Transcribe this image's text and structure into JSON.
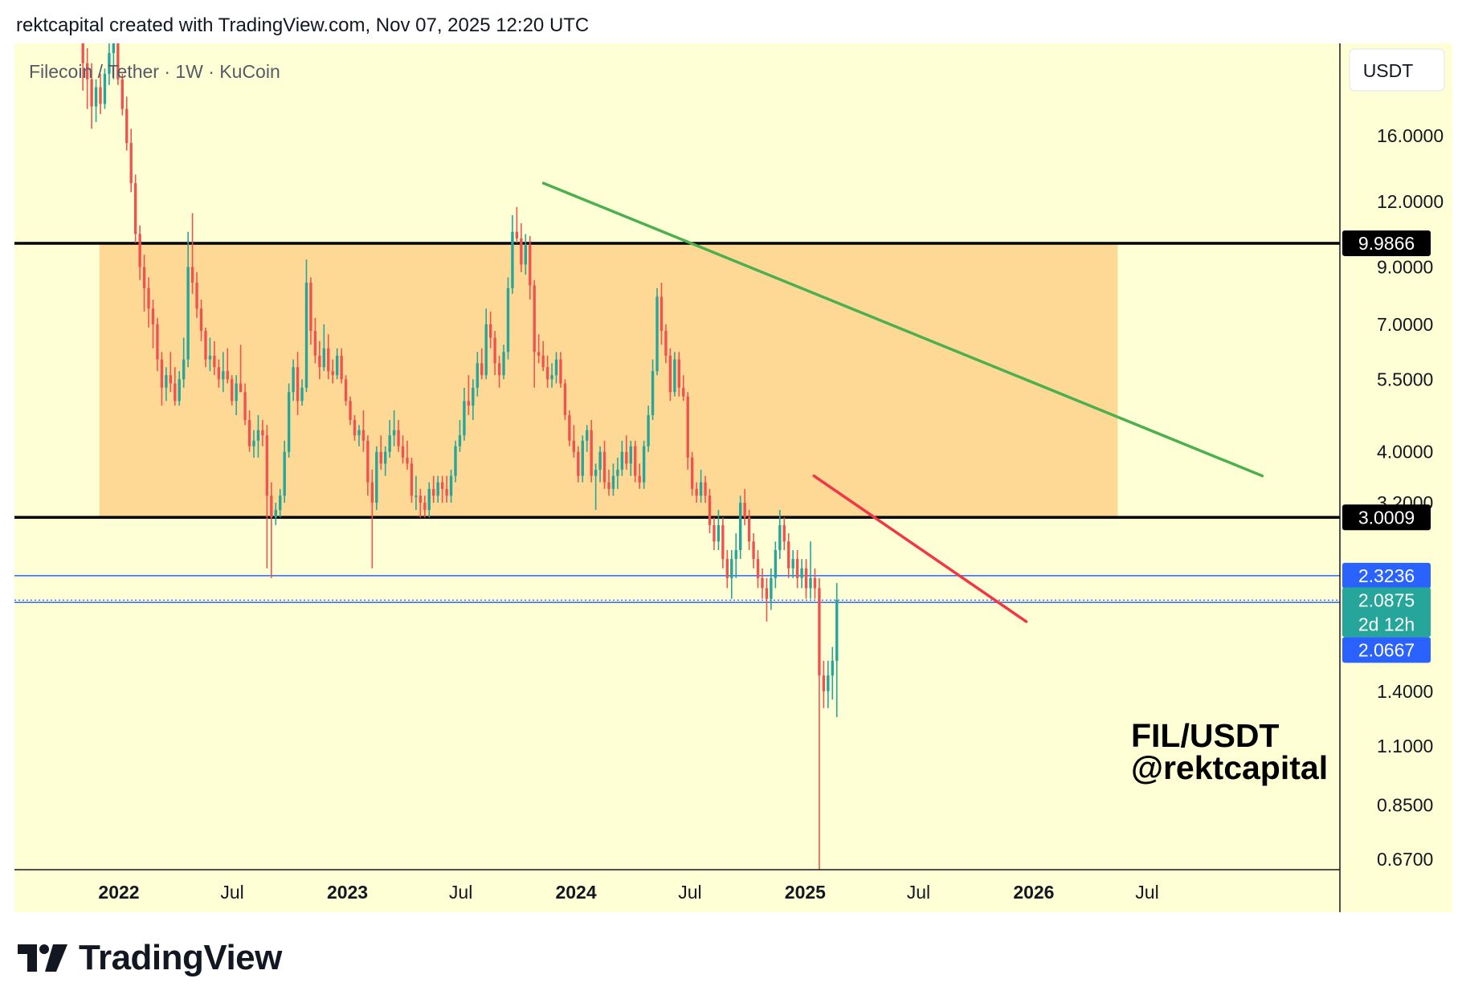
{
  "header": "rektcapital created with TradingView.com, Nov 07, 2025 12:20 UTC",
  "symbol_title": "Filecoin / Tether · 1W · KuCoin",
  "currency": "USDT",
  "footer_brand": "TradingView",
  "annotation": {
    "line1": "FIL/USDT",
    "line2": "@rektcapital"
  },
  "colors": {
    "chart_background": "#ffffd5",
    "zone": "#fed996",
    "up": "#26a69a",
    "down": "#ef5350",
    "green_trendline": "#4caf50",
    "red_trendline": "#f23645",
    "black_level": "#000000",
    "blue_level": "#2962ff",
    "current_price_label": "#26a69a"
  },
  "chart_data": {
    "type": "candlestick",
    "title": "Filecoin / Tether · 1W · KuCoin",
    "x_axis": {
      "ticks": [
        {
          "label": "2022",
          "date": "2022-01-01",
          "bold": true
        },
        {
          "label": "Jul",
          "date": "2022-07-01",
          "bold": false
        },
        {
          "label": "2023",
          "date": "2023-01-01",
          "bold": true
        },
        {
          "label": "Jul",
          "date": "2023-07-01",
          "bold": false
        },
        {
          "label": "2024",
          "date": "2024-01-01",
          "bold": true
        },
        {
          "label": "Jul",
          "date": "2024-07-01",
          "bold": false
        },
        {
          "label": "2025",
          "date": "2025-01-01",
          "bold": true
        },
        {
          "label": "Jul",
          "date": "2025-07-01",
          "bold": false
        },
        {
          "label": "2026",
          "date": "2026-01-01",
          "bold": true
        },
        {
          "label": "Jul",
          "date": "2026-07-01",
          "bold": false
        }
      ]
    },
    "y_axis": {
      "scale": "log",
      "range": [
        0.64,
        24.0
      ],
      "ticks": [
        "16.0000",
        "12.0000",
        "9.0000",
        "7.0000",
        "5.5000",
        "4.0000",
        "3.2000",
        "1.4000",
        "1.1000",
        "0.8500",
        "0.6700"
      ]
    },
    "levels": [
      {
        "value": 9.9866,
        "label": "9.9866",
        "kind": "black-resistance"
      },
      {
        "value": 3.0009,
        "label": "3.0009",
        "kind": "black-support"
      },
      {
        "value": 2.3236,
        "label": "2.3236",
        "kind": "blue-line"
      },
      {
        "value": 2.0667,
        "label": "2.0667",
        "kind": "blue-line"
      }
    ],
    "current_price": {
      "value": 2.0875,
      "label": "2.0875",
      "countdown": "2d 12h"
    },
    "zone": {
      "from_date": "2021-12-01",
      "to_date": "2026-05-15",
      "low": 3.0009,
      "high": 9.9866
    },
    "trendlines": [
      {
        "name": "green",
        "from": [
          "2023-11-10",
          13.0
        ],
        "to": [
          "2027-01-01",
          3.6
        ]
      },
      {
        "name": "red",
        "from": [
          "2025-01-15",
          3.6
        ],
        "to": [
          "2025-12-20",
          1.9
        ]
      }
    ],
    "candles_weekly_from": "2021-11-01",
    "candles": [
      [
        24.0,
        26.0,
        19.5,
        22.0
      ],
      [
        22.0,
        23.5,
        18.0,
        20.5
      ],
      [
        20.5,
        22.0,
        16.5,
        18.2
      ],
      [
        18.2,
        20.5,
        17.0,
        19.8
      ],
      [
        19.8,
        21.0,
        17.6,
        18.4
      ],
      [
        18.4,
        21.5,
        18.0,
        21.0
      ],
      [
        21.0,
        24.5,
        20.0,
        23.0
      ],
      [
        23.0,
        25.5,
        20.5,
        24.0
      ],
      [
        24.0,
        25.0,
        20.0,
        20.5
      ],
      [
        20.5,
        21.0,
        17.5,
        18.0
      ],
      [
        18.0,
        19.0,
        15.0,
        15.5
      ],
      [
        15.5,
        16.5,
        12.5,
        13.0
      ],
      [
        13.0,
        13.5,
        10.0,
        10.4
      ],
      [
        10.4,
        10.8,
        8.5,
        9.0
      ],
      [
        9.0,
        9.5,
        7.4,
        8.2
      ],
      [
        8.2,
        8.6,
        6.9,
        7.5
      ],
      [
        7.5,
        7.8,
        6.3,
        7.0
      ],
      [
        7.0,
        7.2,
        5.7,
        6.0
      ],
      [
        6.0,
        6.2,
        4.9,
        5.3
      ],
      [
        5.3,
        5.8,
        5.0,
        5.6
      ],
      [
        5.6,
        6.2,
        5.2,
        5.4
      ],
      [
        5.4,
        5.8,
        4.9,
        5.0
      ],
      [
        5.0,
        5.7,
        4.9,
        5.5
      ],
      [
        5.5,
        6.6,
        5.3,
        6.0
      ],
      [
        6.0,
        10.5,
        5.8,
        9.0
      ],
      [
        9.0,
        11.4,
        8.0,
        8.4
      ],
      [
        8.4,
        8.8,
        7.2,
        7.5
      ],
      [
        7.5,
        7.8,
        6.5,
        6.8
      ],
      [
        6.8,
        6.9,
        5.8,
        6.0
      ],
      [
        6.0,
        6.6,
        5.7,
        6.1
      ],
      [
        6.1,
        6.5,
        5.6,
        5.8
      ],
      [
        5.8,
        6.0,
        5.3,
        5.5
      ],
      [
        5.5,
        6.2,
        5.2,
        5.7
      ],
      [
        5.7,
        6.3,
        5.4,
        5.5
      ],
      [
        5.5,
        5.6,
        4.9,
        5.0
      ],
      [
        5.0,
        5.6,
        4.7,
        5.4
      ],
      [
        5.4,
        6.4,
        5.2,
        5.2
      ],
      [
        5.2,
        5.4,
        4.5,
        4.6
      ],
      [
        4.6,
        4.8,
        4.0,
        4.1
      ],
      [
        4.1,
        4.4,
        3.9,
        4.2
      ],
      [
        4.2,
        4.7,
        3.9,
        4.4
      ],
      [
        4.4,
        4.6,
        4.1,
        4.3
      ],
      [
        4.3,
        4.5,
        2.4,
        3.3
      ],
      [
        3.3,
        3.5,
        2.3,
        3.0
      ],
      [
        3.0,
        3.2,
        2.9,
        3.1
      ],
      [
        3.1,
        3.4,
        3.0,
        3.3
      ],
      [
        3.3,
        4.2,
        3.2,
        4.0
      ],
      [
        4.0,
        5.4,
        3.9,
        5.2
      ],
      [
        5.2,
        6.0,
        5.0,
        5.8
      ],
      [
        5.8,
        6.2,
        4.7,
        5.0
      ],
      [
        5.0,
        5.5,
        4.9,
        5.3
      ],
      [
        5.3,
        9.3,
        5.2,
        8.4
      ],
      [
        8.4,
        8.6,
        6.4,
        6.8
      ],
      [
        6.8,
        7.2,
        5.9,
        6.1
      ],
      [
        6.1,
        6.5,
        5.5,
        5.8
      ],
      [
        5.8,
        7.0,
        5.7,
        6.3
      ],
      [
        6.3,
        6.7,
        5.5,
        5.7
      ],
      [
        5.7,
        6.0,
        5.4,
        5.6
      ],
      [
        5.6,
        6.3,
        5.5,
        6.1
      ],
      [
        6.1,
        6.3,
        5.4,
        5.5
      ],
      [
        5.5,
        5.6,
        4.9,
        5.0
      ],
      [
        5.0,
        5.1,
        4.5,
        4.6
      ],
      [
        4.6,
        4.7,
        4.2,
        4.3
      ],
      [
        4.3,
        4.5,
        4.1,
        4.4
      ],
      [
        4.4,
        4.8,
        4.0,
        4.2
      ],
      [
        4.2,
        4.3,
        3.3,
        3.5
      ],
      [
        3.5,
        3.7,
        2.4,
        3.2
      ],
      [
        3.2,
        4.1,
        3.1,
        4.0
      ],
      [
        4.0,
        4.3,
        3.7,
        3.8
      ],
      [
        3.8,
        4.1,
        3.6,
        4.0
      ],
      [
        4.0,
        4.6,
        3.9,
        4.3
      ],
      [
        4.3,
        4.8,
        4.1,
        4.4
      ],
      [
        4.4,
        4.6,
        4.0,
        4.1
      ],
      [
        4.1,
        4.3,
        3.8,
        3.9
      ],
      [
        3.9,
        4.2,
        3.7,
        3.8
      ],
      [
        3.8,
        3.9,
        3.2,
        3.3
      ],
      [
        3.3,
        3.6,
        3.1,
        3.3
      ],
      [
        3.3,
        3.4,
        3.0,
        3.2
      ],
      [
        3.2,
        3.3,
        3.0,
        3.1
      ],
      [
        3.1,
        3.5,
        3.0,
        3.4
      ],
      [
        3.4,
        3.6,
        3.2,
        3.3
      ],
      [
        3.3,
        3.6,
        3.2,
        3.5
      ],
      [
        3.5,
        3.6,
        3.2,
        3.4
      ],
      [
        3.4,
        3.6,
        3.2,
        3.3
      ],
      [
        3.3,
        3.7,
        3.2,
        3.6
      ],
      [
        3.6,
        4.2,
        3.5,
        4.1
      ],
      [
        4.1,
        4.6,
        4.0,
        4.3
      ],
      [
        4.3,
        5.3,
        4.2,
        5.0
      ],
      [
        5.0,
        5.6,
        4.7,
        4.9
      ],
      [
        4.9,
        5.5,
        4.6,
        5.3
      ],
      [
        5.3,
        6.2,
        5.1,
        5.9
      ],
      [
        5.9,
        6.3,
        5.5,
        5.6
      ],
      [
        5.6,
        7.5,
        5.5,
        7.0
      ],
      [
        7.0,
        7.4,
        6.3,
        6.6
      ],
      [
        6.6,
        6.8,
        5.6,
        5.9
      ],
      [
        5.9,
        6.1,
        5.3,
        5.6
      ],
      [
        5.6,
        6.4,
        5.5,
        6.2
      ],
      [
        6.2,
        8.6,
        6.0,
        8.2
      ],
      [
        8.2,
        11.3,
        8.0,
        10.5
      ],
      [
        10.5,
        11.7,
        10.0,
        10.2
      ],
      [
        10.2,
        10.9,
        8.8,
        9.1
      ],
      [
        9.1,
        10.4,
        8.7,
        9.9
      ],
      [
        9.9,
        10.3,
        7.8,
        8.3
      ],
      [
        8.3,
        8.5,
        5.3,
        6.2
      ],
      [
        6.2,
        6.7,
        5.9,
        6.1
      ],
      [
        6.1,
        6.5,
        5.7,
        5.8
      ],
      [
        5.8,
        6.1,
        5.3,
        5.5
      ],
      [
        5.5,
        5.9,
        5.3,
        5.6
      ],
      [
        5.6,
        6.2,
        5.4,
        6.0
      ],
      [
        6.0,
        6.2,
        5.3,
        5.4
      ],
      [
        5.4,
        5.5,
        4.6,
        4.7
      ],
      [
        4.7,
        4.8,
        4.1,
        4.2
      ],
      [
        4.2,
        4.5,
        3.9,
        4.0
      ],
      [
        4.0,
        4.1,
        3.5,
        3.6
      ],
      [
        3.6,
        4.3,
        3.5,
        4.2
      ],
      [
        4.2,
        4.5,
        4.0,
        4.4
      ],
      [
        4.4,
        4.6,
        3.5,
        3.6
      ],
      [
        3.6,
        3.8,
        3.1,
        3.7
      ],
      [
        3.7,
        4.1,
        3.5,
        4.0
      ],
      [
        4.0,
        4.2,
        3.4,
        3.5
      ],
      [
        3.5,
        3.7,
        3.3,
        3.4
      ],
      [
        3.4,
        3.8,
        3.3,
        3.6
      ],
      [
        3.6,
        3.9,
        3.4,
        3.7
      ],
      [
        3.7,
        4.2,
        3.6,
        4.0
      ],
      [
        4.0,
        4.3,
        3.7,
        3.8
      ],
      [
        3.8,
        4.2,
        3.6,
        4.1
      ],
      [
        4.1,
        4.2,
        3.5,
        3.6
      ],
      [
        3.6,
        3.8,
        3.4,
        3.5
      ],
      [
        3.5,
        4.2,
        3.4,
        4.1
      ],
      [
        4.1,
        4.9,
        4.0,
        4.7
      ],
      [
        4.7,
        6.0,
        4.6,
        5.7
      ],
      [
        5.7,
        8.2,
        5.6,
        7.9
      ],
      [
        7.9,
        8.4,
        6.4,
        6.8
      ],
      [
        6.8,
        7.0,
        5.9,
        6.1
      ],
      [
        6.1,
        6.3,
        5.0,
        5.2
      ],
      [
        5.2,
        6.2,
        5.1,
        6.0
      ],
      [
        6.0,
        6.2,
        5.1,
        5.3
      ],
      [
        5.3,
        5.6,
        5.0,
        5.1
      ],
      [
        5.1,
        5.2,
        3.7,
        3.9
      ],
      [
        3.9,
        4.0,
        3.3,
        3.4
      ],
      [
        3.4,
        3.5,
        3.2,
        3.3
      ],
      [
        3.3,
        3.7,
        3.2,
        3.5
      ],
      [
        3.5,
        3.6,
        3.2,
        3.3
      ],
      [
        3.3,
        3.4,
        2.8,
        2.9
      ],
      [
        2.9,
        3.0,
        2.6,
        2.7
      ],
      [
        2.7,
        3.1,
        2.6,
        2.9
      ],
      [
        2.9,
        3.0,
        2.4,
        2.5
      ],
      [
        2.5,
        2.6,
        2.2,
        2.3
      ],
      [
        2.3,
        2.6,
        2.1,
        2.5
      ],
      [
        2.5,
        2.8,
        2.3,
        2.6
      ],
      [
        2.6,
        3.3,
        2.5,
        3.2
      ],
      [
        3.2,
        3.4,
        2.9,
        3.0
      ],
      [
        3.0,
        3.1,
        2.6,
        2.7
      ],
      [
        2.7,
        2.8,
        2.4,
        2.5
      ],
      [
        2.5,
        2.6,
        2.2,
        2.3
      ],
      [
        2.3,
        2.4,
        2.1,
        2.2
      ],
      [
        2.2,
        2.3,
        1.9,
        2.1
      ],
      [
        2.1,
        2.4,
        2.0,
        2.3
      ],
      [
        2.3,
        2.7,
        2.2,
        2.6
      ],
      [
        2.6,
        3.1,
        2.5,
        2.9
      ],
      [
        2.9,
        3.0,
        2.6,
        2.7
      ],
      [
        2.7,
        2.8,
        2.3,
        2.4
      ],
      [
        2.4,
        2.6,
        2.3,
        2.5
      ],
      [
        2.5,
        2.6,
        2.2,
        2.3
      ],
      [
        2.3,
        2.5,
        2.2,
        2.4
      ],
      [
        2.4,
        2.5,
        2.1,
        2.2
      ],
      [
        2.2,
        2.7,
        2.1,
        2.3
      ],
      [
        2.3,
        2.4,
        2.1,
        2.2
      ],
      [
        2.2,
        2.3,
        0.6,
        1.5
      ],
      [
        1.5,
        1.6,
        1.3,
        1.4
      ],
      [
        1.4,
        1.6,
        1.3,
        1.5
      ],
      [
        1.5,
        1.7,
        1.35,
        1.6
      ],
      [
        1.6,
        2.25,
        1.25,
        2.0875
      ]
    ]
  }
}
